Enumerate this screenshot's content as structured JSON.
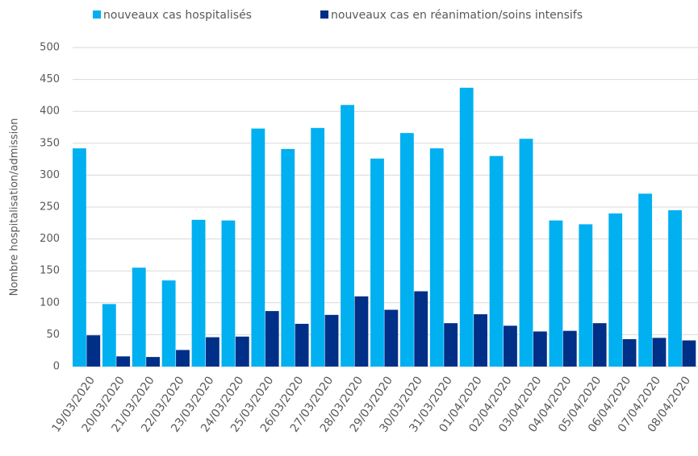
{
  "chart_data": {
    "type": "bar",
    "y_label": "Nombre hospitalisation/admission",
    "categories": [
      "19/03/2020",
      "20/03/2020",
      "21/03/2020",
      "22/03/2020",
      "23/03/2020",
      "24/03/2020",
      "25/03/2020",
      "26/03/2020",
      "27/03/2020",
      "28/03/2020",
      "29/03/2020",
      "30/03/2020",
      "31/03/2020",
      "01/04/2020",
      "02/04/2020",
      "03/04/2020",
      "04/04/2020",
      "05/04/2020",
      "06/04/2020",
      "07/04/2020",
      "08/04/2020"
    ],
    "series": [
      {
        "name": "nouveaux cas hospitalisés",
        "color": "#00b0f0",
        "values": [
          342,
          98,
          155,
          135,
          230,
          229,
          373,
          341,
          374,
          410,
          326,
          366,
          342,
          437,
          330,
          357,
          229,
          223,
          240,
          271,
          245
        ]
      },
      {
        "name": "nouveaux cas en réanimation/soins intensifs",
        "color": "#002f87",
        "values": [
          49,
          16,
          15,
          26,
          46,
          47,
          87,
          67,
          81,
          110,
          89,
          118,
          68,
          82,
          64,
          55,
          56,
          68,
          43,
          45,
          41
        ]
      }
    ],
    "ylim": [
      0,
      500
    ],
    "yticks": [
      0,
      50,
      100,
      150,
      200,
      250,
      300,
      350,
      400,
      450,
      500
    ],
    "grid": true,
    "legend": "top"
  }
}
